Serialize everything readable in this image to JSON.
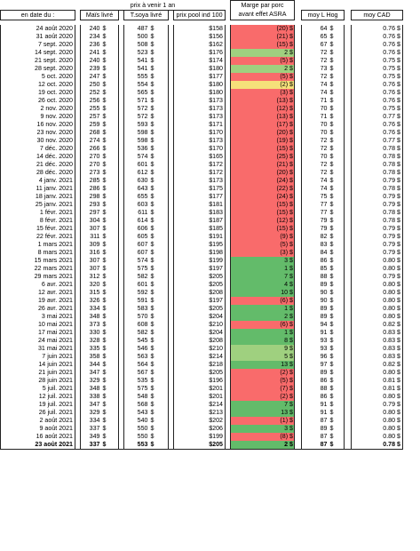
{
  "header": {
    "top_group": "prix à venir 1 an",
    "margin_title_1": "Marge par porc",
    "margin_title_2": "avant effet ASRA",
    "col_date": "en date du :",
    "col_mais": "Maïs livré",
    "col_soya": "T.soya livré",
    "col_pool": "prix pool ind 100",
    "col_hog": "moy L Hog",
    "col_cad": "moy CAD"
  },
  "colors": {
    "red": "#f96b6b",
    "light_green": "#9fd07f",
    "green": "#63bb6a",
    "orange": "#f5a37a",
    "yellow": "#f5e07a"
  },
  "rows": [
    {
      "date": "24 août 2020",
      "mais": "240",
      "soya": "487",
      "pool": "$158",
      "margin": "(20) $",
      "mc": "red",
      "hog": "64",
      "cad": "0.76 $"
    },
    {
      "date": "31 août 2020",
      "mais": "234",
      "soya": "500",
      "pool": "$156",
      "margin": "(21) $",
      "mc": "red",
      "hog": "65",
      "cad": "0.76 $"
    },
    {
      "date": "7 sept. 2020",
      "mais": "236",
      "soya": "508",
      "pool": "$162",
      "margin": "(15) $",
      "mc": "red",
      "hog": "67",
      "cad": "0.76 $"
    },
    {
      "date": "14 sept. 2020",
      "mais": "241",
      "soya": "523",
      "pool": "$176",
      "margin": "2 $",
      "mc": "light_green",
      "hog": "72",
      "cad": "0.76 $"
    },
    {
      "date": "21 sept. 2020",
      "mais": "240",
      "soya": "541",
      "pool": "$174",
      "margin": "(5) $",
      "mc": "red",
      "hog": "72",
      "cad": "0.75 $"
    },
    {
      "date": "28 sept. 2020",
      "mais": "239",
      "soya": "541",
      "pool": "$180",
      "margin": "2 $",
      "mc": "light_green",
      "hog": "73",
      "cad": "0.75 $"
    },
    {
      "date": "5 oct. 2020",
      "mais": "247",
      "soya": "555",
      "pool": "$177",
      "margin": "(5) $",
      "mc": "red",
      "hog": "72",
      "cad": "0.75 $"
    },
    {
      "date": "12 oct. 2020",
      "mais": "250",
      "soya": "554",
      "pool": "$180",
      "margin": "(2) $",
      "mc": "yellow",
      "hog": "74",
      "cad": "0.76 $"
    },
    {
      "date": "19 oct. 2020",
      "mais": "252",
      "soya": "565",
      "pool": "$180",
      "margin": "(3) $",
      "mc": "red",
      "hog": "74",
      "cad": "0.76 $"
    },
    {
      "date": "26 oct. 2020",
      "mais": "256",
      "soya": "571",
      "pool": "$173",
      "margin": "(13) $",
      "mc": "red",
      "hog": "71",
      "cad": "0.76 $"
    },
    {
      "date": "2 nov. 2020",
      "mais": "255",
      "soya": "572",
      "pool": "$173",
      "margin": "(12) $",
      "mc": "red",
      "hog": "70",
      "cad": "0.75 $"
    },
    {
      "date": "9 nov. 2020",
      "mais": "257",
      "soya": "572",
      "pool": "$173",
      "margin": "(13) $",
      "mc": "red",
      "hog": "71",
      "cad": "0.77 $"
    },
    {
      "date": "16 nov. 2020",
      "mais": "259",
      "soya": "593",
      "pool": "$171",
      "margin": "(17) $",
      "mc": "red",
      "hog": "70",
      "cad": "0.76 $"
    },
    {
      "date": "23 nov. 2020",
      "mais": "268",
      "soya": "598",
      "pool": "$170",
      "margin": "(20) $",
      "mc": "red",
      "hog": "70",
      "cad": "0.76 $"
    },
    {
      "date": "30 nov. 2020",
      "mais": "274",
      "soya": "598",
      "pool": "$173",
      "margin": "(19) $",
      "mc": "red",
      "hog": "72",
      "cad": "0.77 $"
    },
    {
      "date": "7 déc. 2020",
      "mais": "266",
      "soya": "536",
      "pool": "$170",
      "margin": "(15) $",
      "mc": "red",
      "hog": "72",
      "cad": "0.78 $"
    },
    {
      "date": "14 déc. 2020",
      "mais": "270",
      "soya": "574",
      "pool": "$165",
      "margin": "(25) $",
      "mc": "red",
      "hog": "70",
      "cad": "0.78 $"
    },
    {
      "date": "21 déc. 2020",
      "mais": "270",
      "soya": "601",
      "pool": "$172",
      "margin": "(21) $",
      "mc": "red",
      "hog": "72",
      "cad": "0.78 $"
    },
    {
      "date": "28 déc. 2020",
      "mais": "273",
      "soya": "612",
      "pool": "$172",
      "margin": "(20) $",
      "mc": "red",
      "hog": "72",
      "cad": "0.78 $"
    },
    {
      "date": "4 janv. 2021",
      "mais": "285",
      "soya": "630",
      "pool": "$173",
      "margin": "(24) $",
      "mc": "red",
      "hog": "74",
      "cad": "0.79 $"
    },
    {
      "date": "11 janv. 2021",
      "mais": "286",
      "soya": "643",
      "pool": "$175",
      "margin": "(22) $",
      "mc": "red",
      "hog": "74",
      "cad": "0.78 $"
    },
    {
      "date": "18 janv. 2021",
      "mais": "298",
      "soya": "655",
      "pool": "$177",
      "margin": "(24) $",
      "mc": "red",
      "hog": "75",
      "cad": "0.79 $"
    },
    {
      "date": "25 janv. 2021",
      "mais": "293",
      "soya": "603",
      "pool": "$181",
      "margin": "(15) $",
      "mc": "red",
      "hog": "77",
      "cad": "0.79 $"
    },
    {
      "date": "1 févr. 2021",
      "mais": "297",
      "soya": "611",
      "pool": "$183",
      "margin": "(15) $",
      "mc": "red",
      "hog": "77",
      "cad": "0.78 $"
    },
    {
      "date": "8 févr. 2021",
      "mais": "304",
      "soya": "614",
      "pool": "$187",
      "margin": "(12) $",
      "mc": "red",
      "hog": "79",
      "cad": "0.78 $"
    },
    {
      "date": "15 févr. 2021",
      "mais": "307",
      "soya": "606",
      "pool": "$185",
      "margin": "(15) $",
      "mc": "red",
      "hog": "79",
      "cad": "0.79 $"
    },
    {
      "date": "22 févr. 2021",
      "mais": "311",
      "soya": "605",
      "pool": "$191",
      "margin": "(9) $",
      "mc": "red",
      "hog": "82",
      "cad": "0.79 $"
    },
    {
      "date": "1 mars 2021",
      "mais": "309",
      "soya": "607",
      "pool": "$195",
      "margin": "(5) $",
      "mc": "red",
      "hog": "83",
      "cad": "0.79 $"
    },
    {
      "date": "8 mars 2021",
      "mais": "316",
      "soya": "607",
      "pool": "$198",
      "margin": "(3) $",
      "mc": "red",
      "hog": "84",
      "cad": "0.79 $"
    },
    {
      "date": "15 mars 2021",
      "mais": "307",
      "soya": "574",
      "pool": "$199",
      "margin": "3 $",
      "mc": "green",
      "hog": "86",
      "cad": "0.80 $"
    },
    {
      "date": "22 mars 2021",
      "mais": "307",
      "soya": "575",
      "pool": "$197",
      "margin": "1 $",
      "mc": "green",
      "hog": "85",
      "cad": "0.80 $"
    },
    {
      "date": "29 mars 2021",
      "mais": "312",
      "soya": "582",
      "pool": "$205",
      "margin": "7 $",
      "mc": "green",
      "hog": "88",
      "cad": "0.79 $"
    },
    {
      "date": "6 avr. 2021",
      "mais": "320",
      "soya": "601",
      "pool": "$205",
      "margin": "4 $",
      "mc": "green",
      "hog": "89",
      "cad": "0.80 $"
    },
    {
      "date": "12 avr. 2021",
      "mais": "315",
      "soya": "592",
      "pool": "$208",
      "margin": "10 $",
      "mc": "green",
      "hog": "90",
      "cad": "0.80 $"
    },
    {
      "date": "19 avr. 2021",
      "mais": "326",
      "soya": "591",
      "pool": "$197",
      "margin": "(6) $",
      "mc": "red",
      "hog": "90",
      "cad": "0.80 $"
    },
    {
      "date": "26 avr. 2021",
      "mais": "334",
      "soya": "583",
      "pool": "$205",
      "margin": "1 $",
      "mc": "green",
      "hog": "89",
      "cad": "0.80 $"
    },
    {
      "date": "3 mai 2021",
      "mais": "348",
      "soya": "570",
      "pool": "$204",
      "margin": "2 $",
      "mc": "green",
      "hog": "89",
      "cad": "0.80 $"
    },
    {
      "date": "10 mai 2021",
      "mais": "373",
      "soya": "608",
      "pool": "$210",
      "margin": "(6) $",
      "mc": "red",
      "hog": "94",
      "cad": "0.82 $"
    },
    {
      "date": "17 mai 2021",
      "mais": "330",
      "soya": "582",
      "pool": "$204",
      "margin": "1 $",
      "mc": "green",
      "hog": "91",
      "cad": "0.83 $"
    },
    {
      "date": "24 mai 2021",
      "mais": "328",
      "soya": "545",
      "pool": "$208",
      "margin": "8 $",
      "mc": "green",
      "hog": "93",
      "cad": "0.83 $"
    },
    {
      "date": "31 mai 2021",
      "mais": "335",
      "soya": "546",
      "pool": "$210",
      "margin": "9 $",
      "mc": "light_green",
      "hog": "93",
      "cad": "0.83 $"
    },
    {
      "date": "7 juin 2021",
      "mais": "358",
      "soya": "563",
      "pool": "$214",
      "margin": "5 $",
      "mc": "light_green",
      "hog": "96",
      "cad": "0.83 $"
    },
    {
      "date": "14 juin 2021",
      "mais": "344",
      "soya": "564",
      "pool": "$218",
      "margin": "13 $",
      "mc": "green",
      "hog": "97",
      "cad": "0.82 $"
    },
    {
      "date": "21 juin 2021",
      "mais": "347",
      "soya": "567",
      "pool": "$205",
      "margin": "(2) $",
      "mc": "red",
      "hog": "89",
      "cad": "0.80 $"
    },
    {
      "date": "28 juin 2021",
      "mais": "329",
      "soya": "535",
      "pool": "$196",
      "margin": "(5) $",
      "mc": "red",
      "hog": "86",
      "cad": "0.81 $"
    },
    {
      "date": "5 juil. 2021",
      "mais": "348",
      "soya": "575",
      "pool": "$201",
      "margin": "(7) $",
      "mc": "red",
      "hog": "88",
      "cad": "0.81 $"
    },
    {
      "date": "12 juil. 2021",
      "mais": "338",
      "soya": "548",
      "pool": "$201",
      "margin": "(2) $",
      "mc": "red",
      "hog": "86",
      "cad": "0.80 $"
    },
    {
      "date": "19 juil. 2021",
      "mais": "347",
      "soya": "568",
      "pool": "$214",
      "margin": "7 $",
      "mc": "green",
      "hog": "91",
      "cad": "0.79 $"
    },
    {
      "date": "26 juil. 2021",
      "mais": "329",
      "soya": "543",
      "pool": "$213",
      "margin": "13 $",
      "mc": "green",
      "hog": "91",
      "cad": "0.80 $"
    },
    {
      "date": "2 août 2021",
      "mais": "334",
      "soya": "540",
      "pool": "$202",
      "margin": "(1) $",
      "mc": "red",
      "hog": "87",
      "cad": "0.80 $"
    },
    {
      "date": "9 août 2021",
      "mais": "337",
      "soya": "550",
      "pool": "$206",
      "margin": "3 $",
      "mc": "green",
      "hog": "89",
      "cad": "0.80 $"
    },
    {
      "date": "16 août 2021",
      "mais": "349",
      "soya": "550",
      "pool": "$199",
      "margin": "(8) $",
      "mc": "red",
      "hog": "87",
      "cad": "0.80 $"
    },
    {
      "date": "23 août 2021",
      "mais": "337",
      "soya": "553",
      "pool": "$205",
      "margin": "2 $",
      "mc": "green",
      "hog": "87",
      "cad": "0.78 $"
    }
  ]
}
